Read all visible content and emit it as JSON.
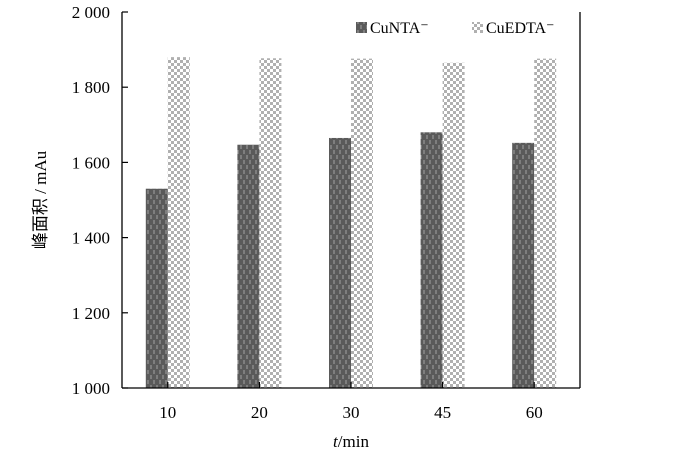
{
  "chart_data": {
    "type": "bar",
    "categories": [
      "10",
      "20",
      "30",
      "45",
      "60"
    ],
    "series": [
      {
        "name": "CuNTA⁻",
        "values": [
          1530,
          1647,
          1665,
          1680,
          1652
        ],
        "color": "#5a5a5a",
        "pattern": "dark-dashed"
      },
      {
        "name": "CuEDTA⁻",
        "values": [
          1880,
          1877,
          1876,
          1865,
          1876
        ],
        "color": "#c8c8c8",
        "pattern": "checker"
      }
    ],
    "ylim": [
      1000,
      2000
    ],
    "yticks": [
      1000,
      1200,
      1400,
      1600,
      1800,
      2000
    ],
    "ytick_labels": [
      "1 000",
      "1 200",
      "1 400",
      "1 600",
      "1 800",
      "2 000"
    ],
    "xlabel_italic": "t",
    "xlabel_rest": "/min",
    "ylabel": "峰面积 / mAu",
    "legend_position": "top-right",
    "grid": false
  }
}
